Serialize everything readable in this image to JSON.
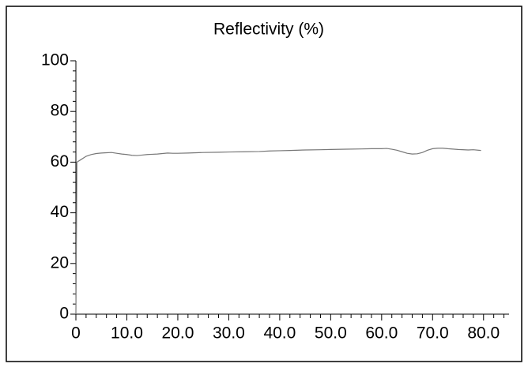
{
  "chart_data": {
    "type": "line",
    "title": "Reflectivity (%)",
    "x": [
      0,
      0.2,
      1,
      2,
      3,
      4,
      5,
      6,
      7,
      8,
      9,
      10,
      11,
      12,
      13,
      14,
      15,
      16,
      17,
      18,
      19,
      20,
      22,
      25,
      28,
      30,
      33,
      36,
      38,
      40,
      42,
      45,
      48,
      50,
      53,
      56,
      58,
      60,
      61,
      62,
      63,
      64,
      65,
      66,
      67,
      68,
      69,
      70,
      71,
      72,
      73,
      75,
      77,
      78,
      79.5
    ],
    "series": [
      {
        "name": "Reflectivity",
        "color": "#777777",
        "values": [
          0,
          60,
          61,
          62.3,
          63,
          63.4,
          63.6,
          63.7,
          63.8,
          63.5,
          63.2,
          63,
          62.7,
          62.6,
          62.8,
          63,
          63.1,
          63.2,
          63.4,
          63.6,
          63.5,
          63.5,
          63.6,
          63.8,
          63.9,
          64,
          64.1,
          64.2,
          64.4,
          64.5,
          64.6,
          64.8,
          64.9,
          65,
          65.1,
          65.2,
          65.3,
          65.3,
          65.4,
          65.1,
          64.7,
          64.1,
          63.5,
          63.2,
          63.3,
          63.8,
          64.7,
          65.3,
          65.5,
          65.5,
          65.3,
          65,
          64.8,
          64.9,
          64.6
        ]
      }
    ],
    "xlim": [
      0,
      85
    ],
    "ylim": [
      0,
      100
    ],
    "xticks": [
      0,
      {
        "value": 10,
        "label": "10.0"
      },
      {
        "value": 20,
        "label": "20.0"
      },
      {
        "value": 30,
        "label": "30.0"
      },
      {
        "value": 40,
        "label": "40.0"
      },
      {
        "value": 50,
        "label": "50.0"
      },
      {
        "value": 60,
        "label": "60.0"
      },
      {
        "value": 70,
        "label": "70.0"
      },
      {
        "value": 80,
        "label": "80.0"
      }
    ],
    "yticks": [
      0,
      20,
      40,
      60,
      80,
      100
    ],
    "xminorticks": [
      2,
      4,
      6,
      8,
      12,
      14,
      16,
      18,
      22,
      24,
      26,
      28,
      32,
      34,
      36,
      38,
      42,
      44,
      46,
      48,
      52,
      54,
      56,
      58,
      62,
      64,
      66,
      68,
      72,
      74,
      76,
      78,
      82,
      84
    ],
    "yminorticks": [
      4,
      8,
      12,
      16,
      24,
      28,
      32,
      36,
      44,
      48,
      52,
      56,
      64,
      68,
      72,
      76,
      84,
      88,
      92,
      96
    ]
  }
}
